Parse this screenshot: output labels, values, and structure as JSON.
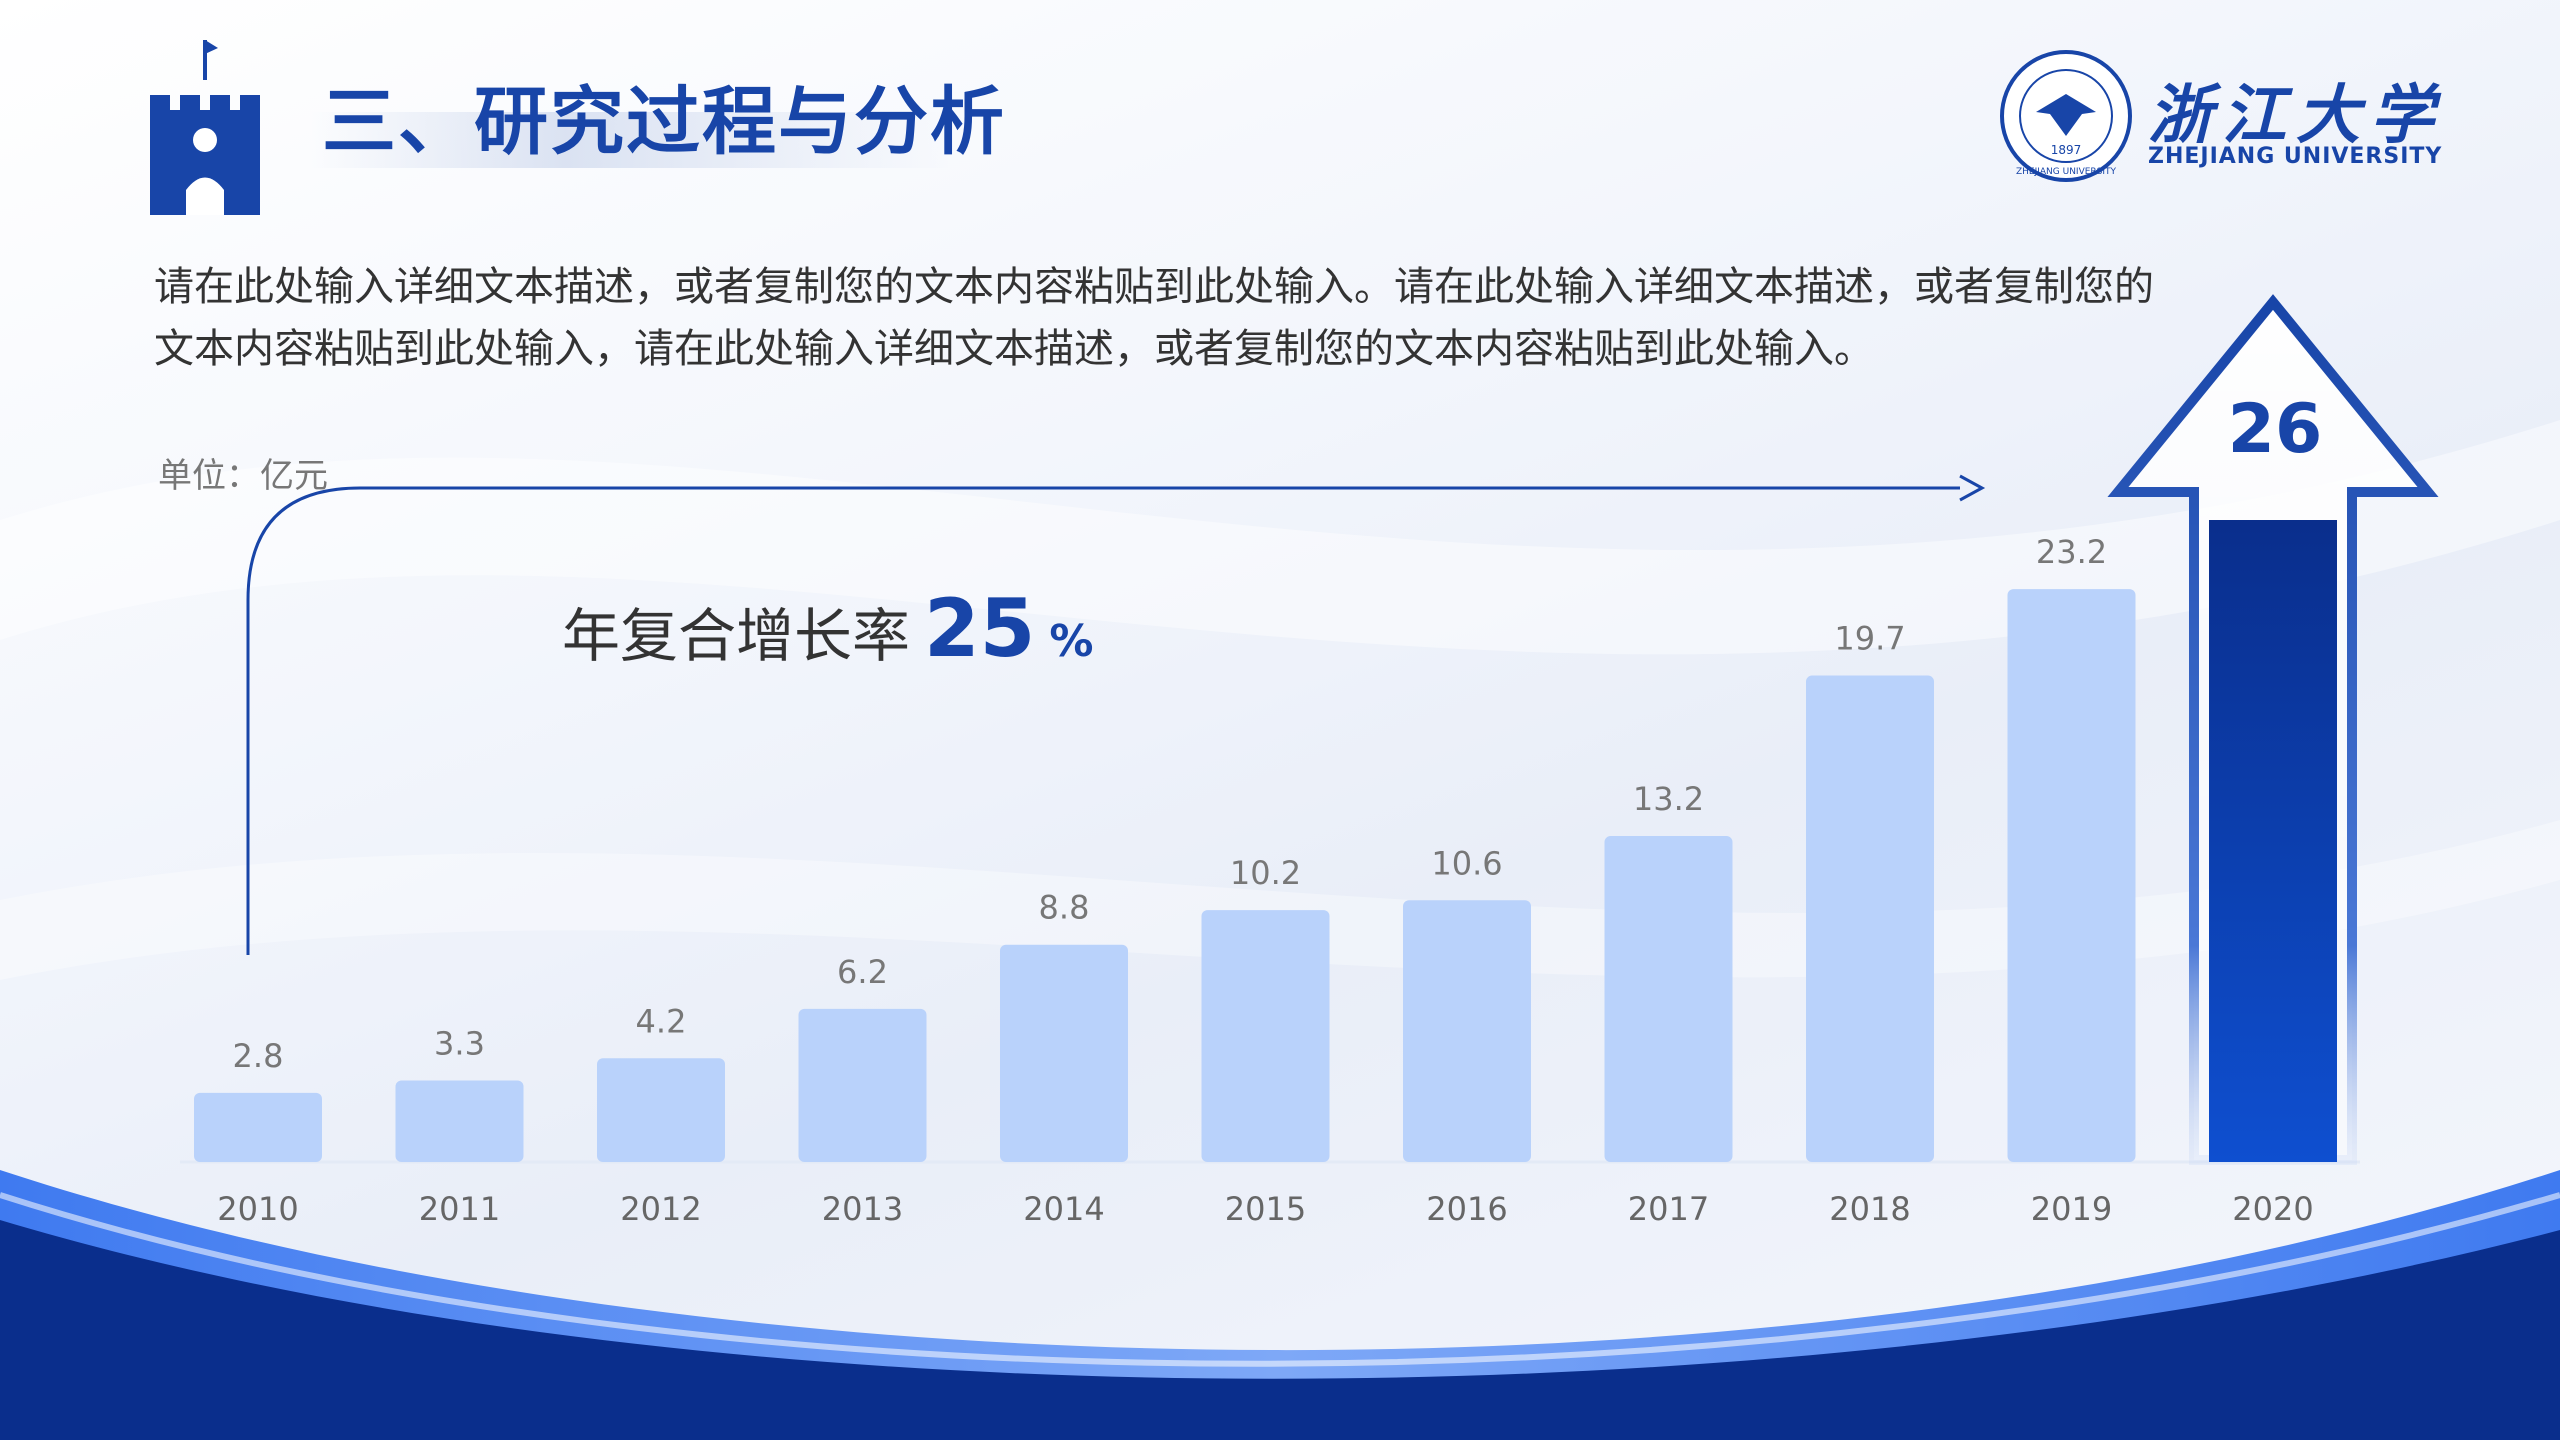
{
  "header": {
    "title": "三、研究过程与分析",
    "university_cn": "浙江大学",
    "university_en": "ZHEJIANG UNIVERSITY",
    "seal_year": "1897",
    "seal_text": "ZHEJIANG UNIVERSITY"
  },
  "description": "请在此处输入详细文本描述，或者复制您的文本内容粘贴到此处输入。请在此处输入详细文本描述，或者复制您的文本内容粘贴到此处输入，请在此处输入详细文本描述，或者复制您的文本内容粘贴到此处输入。",
  "unit_label": "单位：亿元",
  "cagr": {
    "label": "年复合增长率",
    "value": "25",
    "unit": "%"
  },
  "highlight_value": "26",
  "colors": {
    "primary": "#1845a8",
    "bar": "#b9d2fb",
    "bar_highlight_top": "#0a2e8c",
    "bar_highlight_bottom": "#0e4fd0",
    "footer_dark": "#0a2e8c",
    "footer_light": "#5b8ef0"
  },
  "chart_data": {
    "type": "bar",
    "categories": [
      "2010",
      "2011",
      "2012",
      "2013",
      "2014",
      "2015",
      "2016",
      "2017",
      "2018",
      "2019",
      "2020"
    ],
    "values": [
      2.8,
      3.3,
      4.2,
      6.2,
      8.8,
      10.2,
      10.6,
      13.2,
      19.7,
      23.2,
      26
    ],
    "value_labels": [
      "2.8",
      "3.3",
      "4.2",
      "6.2",
      "8.8",
      "10.2",
      "10.6",
      "13.2",
      "19.7",
      "23.2",
      ""
    ],
    "ylabel": "单位：亿元",
    "ylim": [
      0,
      26
    ],
    "highlight_index": 10,
    "grid": false,
    "legend": "none"
  }
}
